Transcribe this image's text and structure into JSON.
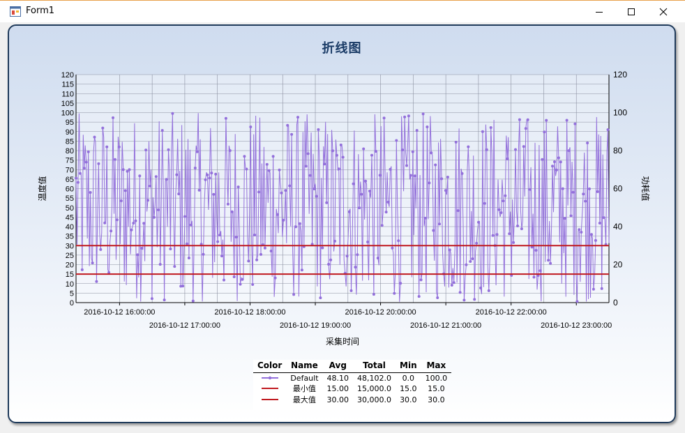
{
  "window": {
    "title": "Form1",
    "minimize": "minimize",
    "maximize": "maximize",
    "close": "close"
  },
  "chart": {
    "title": "折线图",
    "ylabel_left": "温度值",
    "ylabel_right": "功耗值",
    "xlabel": "采集时间"
  },
  "chart_data": {
    "type": "line",
    "title": "折线图",
    "xlabel": "采集时间",
    "ylabel": "温度值",
    "y2label": "功耗值",
    "ylim": [
      0,
      120
    ],
    "y2lim": [
      0,
      120
    ],
    "yticks": [
      0,
      5,
      10,
      15,
      20,
      25,
      30,
      35,
      40,
      45,
      50,
      55,
      60,
      65,
      70,
      75,
      80,
      85,
      90,
      95,
      100,
      105,
      110,
      115,
      120
    ],
    "y2ticks": [
      0,
      20,
      40,
      60,
      80,
      100,
      120
    ],
    "xlim": [
      "2016-10-12 15:20:00",
      "2016-10-12 23:30:00"
    ],
    "xticks": [
      "2016-10-12 16:00:00",
      "2016-10-12 17:00:00",
      "2016-10-12 18:00:00",
      "2016-10-12 19:00:00",
      "2016-10-12 20:00:00",
      "2016-10-12 21:00:00",
      "2016-10-12 22:00:00",
      "2016-10-12 23:00:00"
    ],
    "grid": true,
    "series": [
      {
        "name": "Default",
        "color": "#9370db",
        "style": "random-noisy-line",
        "points": 1000,
        "min": 0.0,
        "max": 100.0,
        "avg": 48.1,
        "total": 48102.0
      },
      {
        "name": "最小值",
        "color": "#c0191f",
        "constant": 15.0
      },
      {
        "name": "最大值",
        "color": "#c0191f",
        "constant": 30.0
      }
    ]
  },
  "legend": {
    "headers": [
      "Color",
      "Name",
      "Avg",
      "Total",
      "Min",
      "Max"
    ],
    "rows": [
      {
        "name": "Default",
        "avg": "48.10",
        "total": "48,102.0",
        "min": "0.0",
        "max": "100.0",
        "color": "#9370db",
        "marker": true
      },
      {
        "name": "最小值",
        "avg": "15.00",
        "total": "15,000.0",
        "min": "15.0",
        "max": "15.0",
        "color": "#c0191f",
        "marker": false
      },
      {
        "name": "最大值",
        "avg": "30.00",
        "total": "30,000.0",
        "min": "30.0",
        "max": "30.0",
        "color": "#c0191f",
        "marker": false
      }
    ]
  }
}
